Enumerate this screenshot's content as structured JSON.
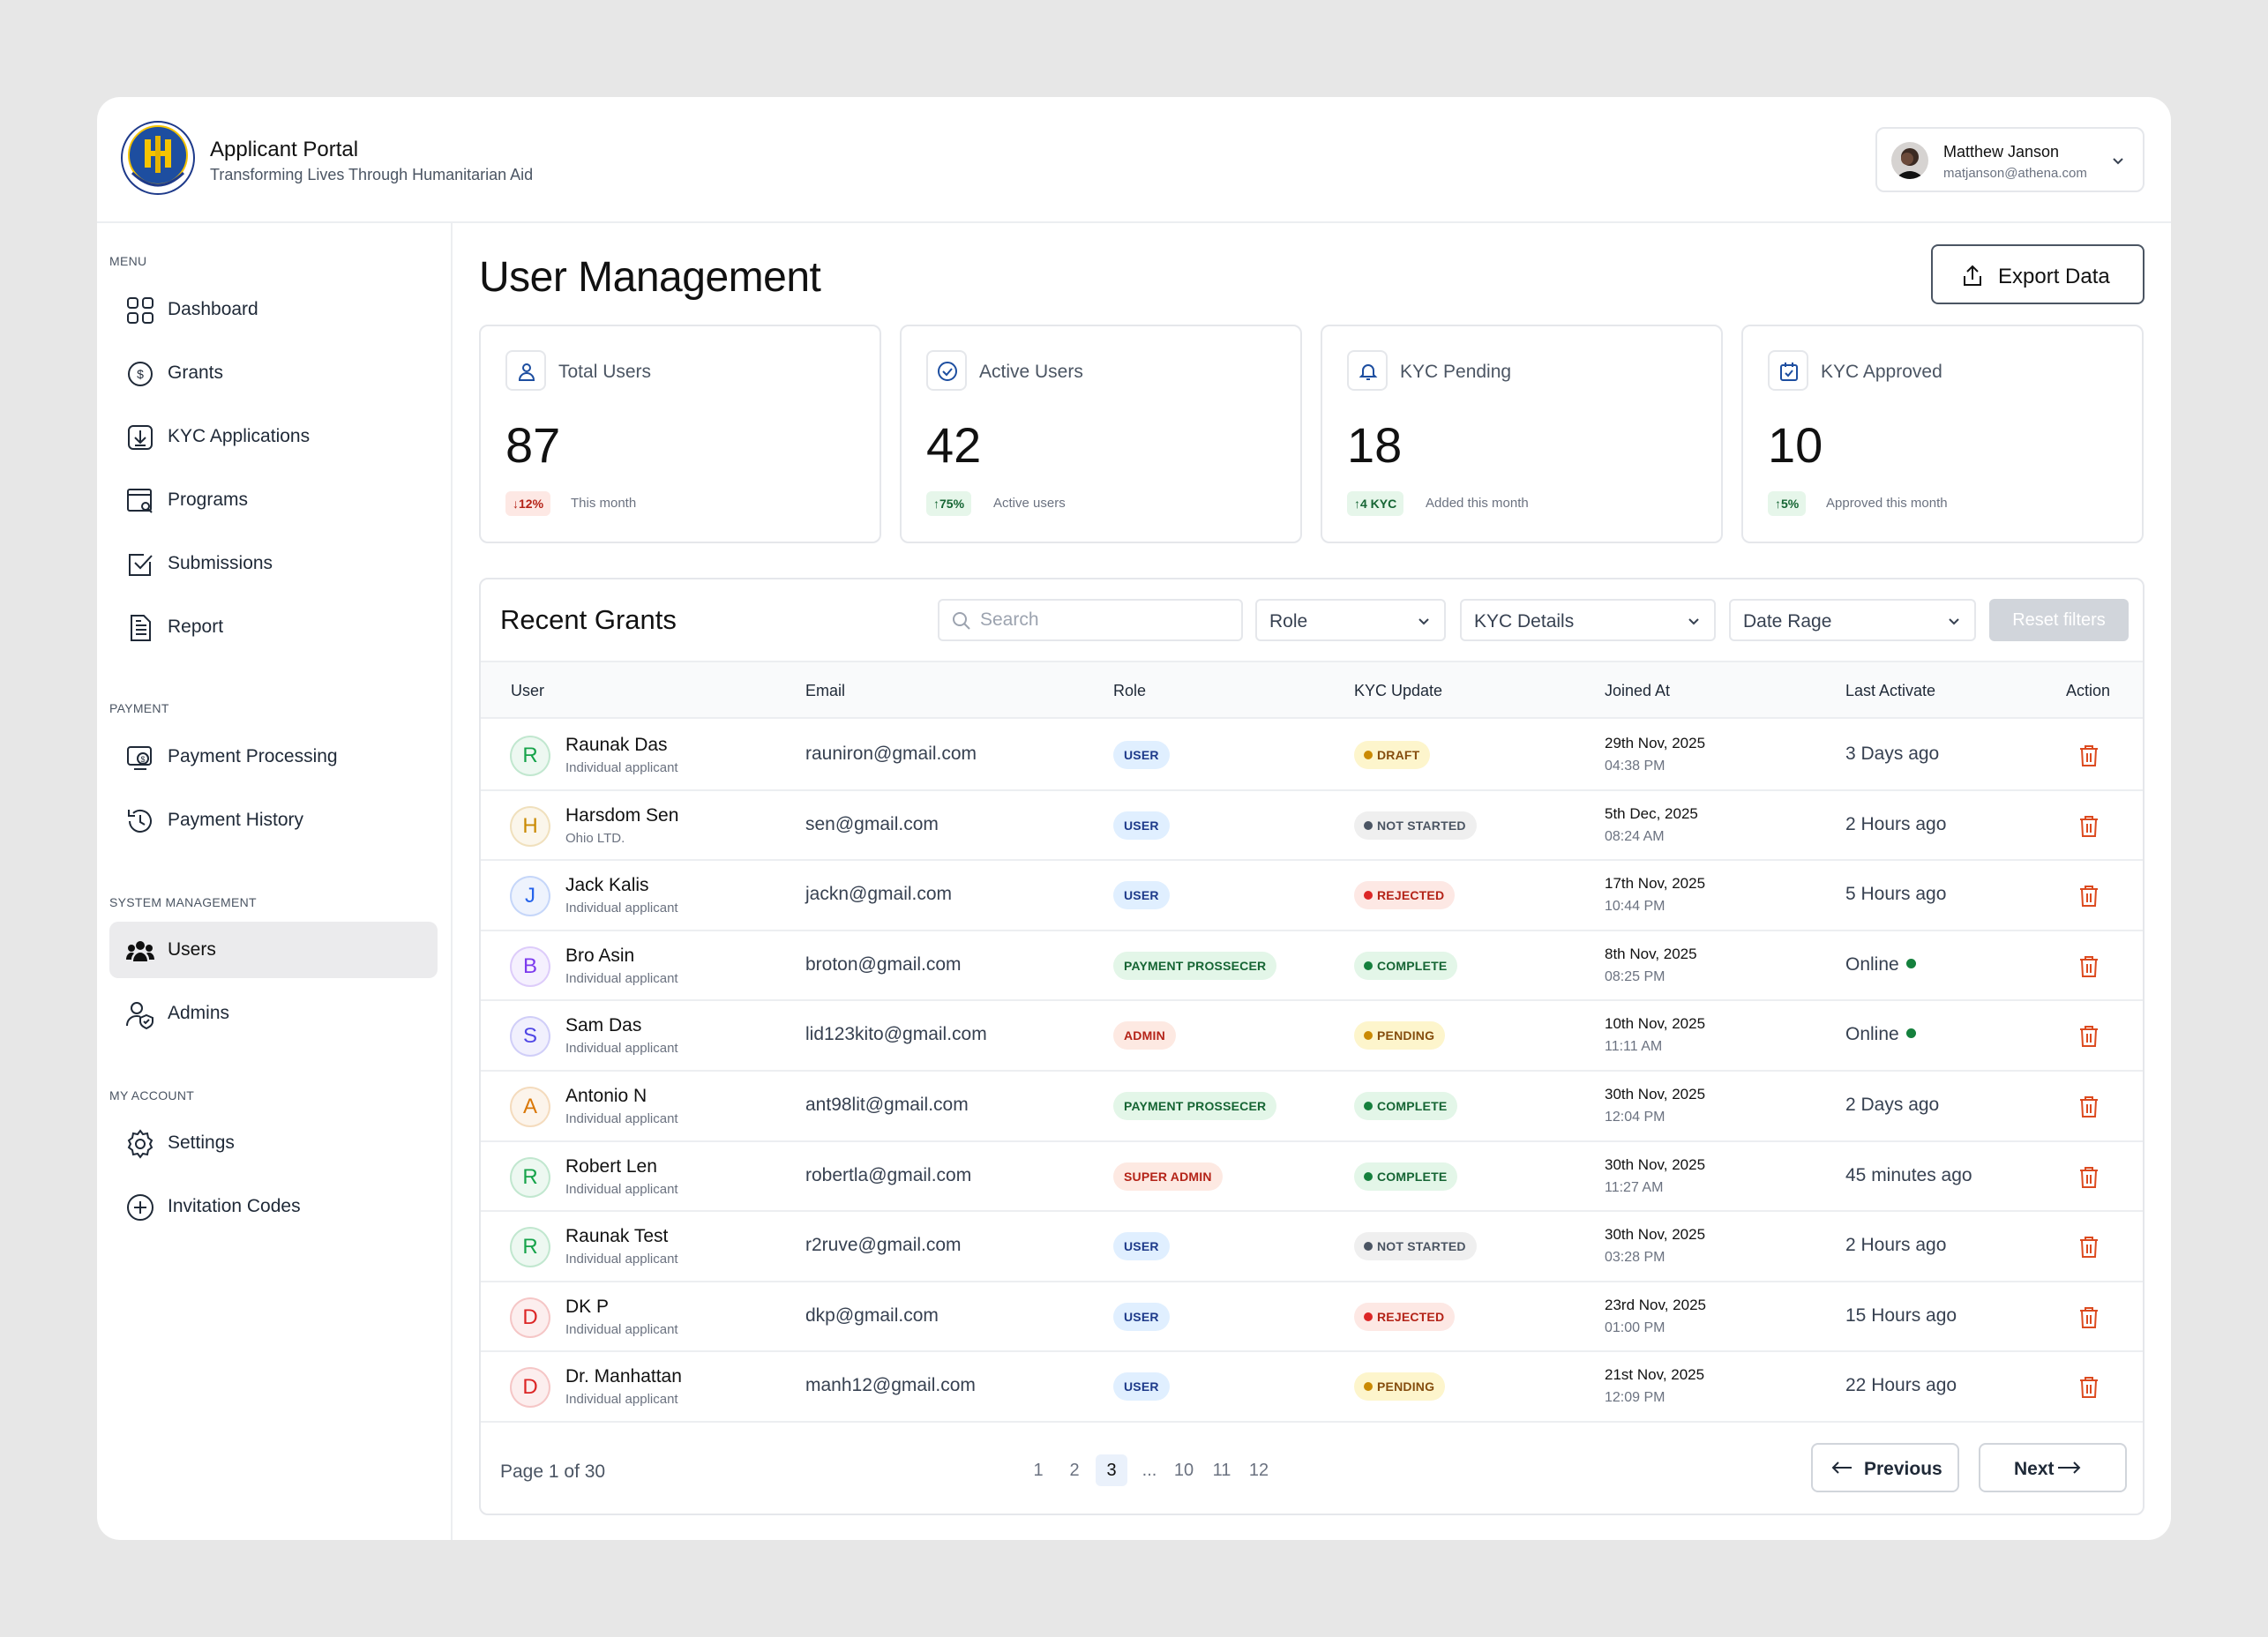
{
  "brand": {
    "title": "Applicant Portal",
    "subtitle": "Transforming Lives Through Humanitarian Aid"
  },
  "user": {
    "name": "Matthew Janson",
    "email": "matjanson@athena.com"
  },
  "sidebar": {
    "sections": [
      "MENU",
      "PAYMENT",
      "SYSTEM MANAGEMENT",
      "MY ACCOUNT"
    ],
    "items": [
      {
        "label": "Dashboard"
      },
      {
        "label": "Grants"
      },
      {
        "label": "KYC Applications"
      },
      {
        "label": "Programs"
      },
      {
        "label": "Submissions"
      },
      {
        "label": "Report"
      },
      {
        "label": "Payment Processing"
      },
      {
        "label": "Payment History"
      },
      {
        "label": "Users"
      },
      {
        "label": "Admins"
      },
      {
        "label": "Settings"
      },
      {
        "label": "Invitation Codes"
      }
    ],
    "active": "Users"
  },
  "page": {
    "title": "User Management",
    "export_label": "Export Data"
  },
  "stats": [
    {
      "label": "Total Users",
      "value": "87",
      "badge": "12%",
      "trend": "down",
      "note": "This month"
    },
    {
      "label": "Active Users",
      "value": "42",
      "badge": "75%",
      "trend": "up",
      "note": "Active users"
    },
    {
      "label": "KYC Pending",
      "value": "18",
      "badge": "4 KYC",
      "trend": "up",
      "note": "Added this month"
    },
    {
      "label": "KYC Approved",
      "value": "10",
      "badge": "5%",
      "trend": "up",
      "note": "Approved this month"
    }
  ],
  "grants": {
    "title": "Recent Grants",
    "search_placeholder": "Search",
    "filters": {
      "role": "Role",
      "kyc": "KYC Details",
      "date": "Date Rage",
      "reset": "Reset filters"
    },
    "columns": [
      "User",
      "Email",
      "Role",
      "KYC Update",
      "Joined At",
      "Last Activate",
      "Action"
    ],
    "rows": [
      {
        "initial": "R",
        "name": "Raunak Das",
        "sub": "Individual applicant",
        "email": "rauniron@gmail.com",
        "role": "USER",
        "kyc": "DRAFT",
        "joined_date": "29th Nov, 2025",
        "joined_time": "04:38 PM",
        "last": "3 Days ago",
        "online": false
      },
      {
        "initial": "H",
        "name": "Harsdom Sen",
        "sub": "Ohio LTD.",
        "email": "sen@gmail.com",
        "role": "USER",
        "kyc": "NOT STARTED",
        "joined_date": "5th Dec, 2025",
        "joined_time": "08:24 AM",
        "last": "2 Hours ago",
        "online": false
      },
      {
        "initial": "J",
        "name": "Jack Kalis",
        "sub": "Individual applicant",
        "email": "jackn@gmail.com",
        "role": "USER",
        "kyc": "REJECTED",
        "joined_date": "17th Nov, 2025",
        "joined_time": "10:44 PM",
        "last": "5 Hours ago",
        "online": false
      },
      {
        "initial": "B",
        "name": "Bro Asin",
        "sub": "Individual applicant",
        "email": "broton@gmail.com",
        "role": "PAYMENT PROSSECER",
        "kyc": "COMPLETE",
        "joined_date": "8th Nov, 2025",
        "joined_time": "08:25 PM",
        "last": "Online",
        "online": true
      },
      {
        "initial": "S",
        "name": "Sam Das",
        "sub": "Individual applicant",
        "email": "lid123kito@gmail.com",
        "role": "ADMIN",
        "kyc": "PENDING",
        "joined_date": "10th Nov, 2025",
        "joined_time": "11:11 AM",
        "last": "Online",
        "online": true
      },
      {
        "initial": "A",
        "name": "Antonio N",
        "sub": "Individual applicant",
        "email": "ant98lit@gmail.com",
        "role": "PAYMENT PROSSECER",
        "kyc": "COMPLETE",
        "joined_date": "30th Nov, 2025",
        "joined_time": "12:04 PM",
        "last": "2 Days ago",
        "online": false
      },
      {
        "initial": "R",
        "name": "Robert Len",
        "sub": "Individual applicant",
        "email": "robertla@gmail.com",
        "role": "SUPER ADMIN",
        "kyc": "COMPLETE",
        "joined_date": "30th Nov, 2025",
        "joined_time": "11:27 AM",
        "last": "45 minutes ago",
        "online": false
      },
      {
        "initial": "R",
        "name": "Raunak Test",
        "sub": "Individual applicant",
        "email": "r2ruve@gmail.com",
        "role": "USER",
        "kyc": "NOT STARTED",
        "joined_date": "30th Nov, 2025",
        "joined_time": "03:28 PM",
        "last": "2 Hours ago",
        "online": false
      },
      {
        "initial": "D",
        "name": "DK P",
        "sub": "Individual applicant",
        "email": "dkp@gmail.com",
        "role": "USER",
        "kyc": "REJECTED",
        "joined_date": "23rd Nov, 2025",
        "joined_time": "01:00 PM",
        "last": "15 Hours ago",
        "online": false
      },
      {
        "initial": "D",
        "name": "Dr. Manhattan",
        "sub": "Individual applicant",
        "email": "manh12@gmail.com",
        "role": "USER",
        "kyc": "PENDING",
        "joined_date": "21st Nov, 2025",
        "joined_time": "12:09 PM",
        "last": "22 Hours ago",
        "online": false
      }
    ]
  },
  "pagination": {
    "label": "Page 1 of 30",
    "pages": [
      "1",
      "2",
      "3",
      "...",
      "10",
      "11",
      "12"
    ],
    "current": "3",
    "prev": "Previous",
    "next": "Next"
  },
  "colors": {
    "initials": {
      "R": "#16a34a",
      "H": "#ca8a04",
      "J": "#2563eb",
      "B": "#7c3aed",
      "S": "#4f46e5",
      "A": "#d97706",
      "D": "#dc2626"
    },
    "role": {
      "USER": [
        "#e0efff",
        "#1e3a8a"
      ],
      "PAYMENT PROSSECER": [
        "#e3f6e8",
        "#166534"
      ],
      "ADMIN": [
        "#fde9e2",
        "#b42318"
      ],
      "SUPER ADMIN": [
        "#fde9e2",
        "#b42318"
      ]
    },
    "kyc": {
      "DRAFT": [
        "#fdf5cc",
        "#854d0e",
        "#ca8a04"
      ],
      "NOT STARTED": [
        "#efefef",
        "#4b5563",
        "#4b5563"
      ],
      "REJECTED": [
        "#fde8e4",
        "#b42318",
        "#dc2626"
      ],
      "COMPLETE": [
        "#e3f6e8",
        "#166534",
        "#15803d"
      ],
      "PENDING": [
        "#fdf5cc",
        "#854d0e",
        "#ca8a04"
      ]
    },
    "delete_icon": "#dc4a1f",
    "online": "#15803d"
  },
  "icons": {
    "sidebar": [
      "grid-icon",
      "dollar-circle-icon",
      "download-box-icon",
      "browser-search-icon",
      "check-box-icon",
      "document-icon",
      "monitor-dollar-icon",
      "history-icon",
      "users-icon",
      "user-shield-icon",
      "gear-icon",
      "plus-circle-icon"
    ],
    "stats": [
      "user-icon",
      "check-circle-icon",
      "bell-icon",
      "calendar-check-icon"
    ]
  }
}
